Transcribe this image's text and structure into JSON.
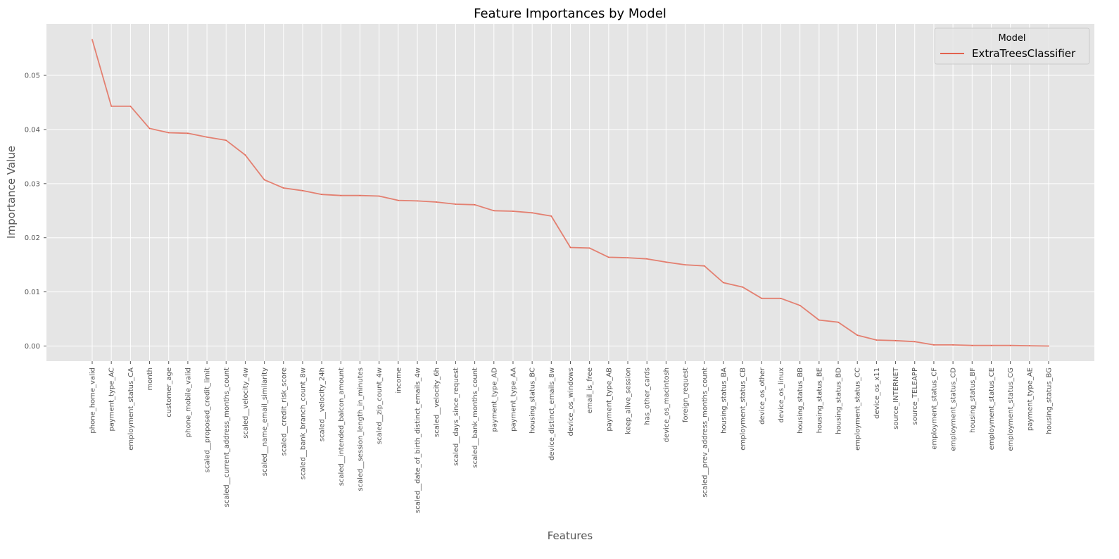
{
  "chart_data": {
    "type": "line",
    "title": "Feature Importances by Model",
    "xlabel": "Features",
    "ylabel": "Importance Value",
    "ylim": [
      -0.0028,
      0.0595
    ],
    "yticks": [
      0.0,
      0.01,
      0.02,
      0.03,
      0.04,
      0.05
    ],
    "ytick_labels": [
      "0.00",
      "0.01",
      "0.02",
      "0.03",
      "0.04",
      "0.05"
    ],
    "grid": true,
    "legend": {
      "title": "Model",
      "position": "top-right"
    },
    "categories": [
      "phone_home_valid",
      "payment_type_AC",
      "employment_status_CA",
      "month",
      "customer_age",
      "phone_mobile_valid",
      "scaled__proposed_credit_limit",
      "scaled__current_address_months_count",
      "scaled__velocity_4w",
      "scaled__name_email_similarity",
      "scaled__credit_risk_score",
      "scaled__bank_branch_count_8w",
      "scaled__velocity_24h",
      "scaled__intended_balcon_amount",
      "scaled__session_length_in_minutes",
      "scaled__zip_count_4w",
      "income",
      "scaled__date_of_birth_distinct_emails_4w",
      "scaled__velocity_6h",
      "scaled__days_since_request",
      "scaled__bank_months_count",
      "payment_type_AD",
      "payment_type_AA",
      "housing_status_BC",
      "device_distinct_emails_8w",
      "device_os_windows",
      "email_is_free",
      "payment_type_AB",
      "keep_alive_session",
      "has_other_cards",
      "device_os_macintosh",
      "foreign_request",
      "scaled__prev_address_months_count",
      "housing_status_BA",
      "employment_status_CB",
      "device_os_other",
      "device_os_linux",
      "housing_status_BB",
      "housing_status_BE",
      "housing_status_BD",
      "employment_status_CC",
      "device_os_x11",
      "source_INTERNET",
      "source_TELEAPP",
      "employment_status_CF",
      "employment_status_CD",
      "housing_status_BF",
      "employment_status_CE",
      "employment_status_CG",
      "payment_type_AE",
      "housing_status_BG"
    ],
    "series": [
      {
        "name": "ExtraTreesClassifier",
        "color": "#E24A33",
        "values": [
          0.0566,
          0.0443,
          0.0443,
          0.0402,
          0.0394,
          0.0393,
          0.0386,
          0.038,
          0.0353,
          0.0307,
          0.0292,
          0.0287,
          0.028,
          0.0278,
          0.0278,
          0.0277,
          0.0269,
          0.0268,
          0.0266,
          0.0262,
          0.0261,
          0.025,
          0.0249,
          0.0246,
          0.024,
          0.0182,
          0.0181,
          0.0164,
          0.0163,
          0.0161,
          0.0155,
          0.015,
          0.0148,
          0.0117,
          0.0109,
          0.0088,
          0.0088,
          0.0075,
          0.0048,
          0.0044,
          0.002,
          0.0011,
          0.001,
          0.0008,
          0.0002,
          0.0002,
          0.0001,
          0.0001,
          0.0001,
          5e-05,
          0.0
        ]
      }
    ]
  }
}
